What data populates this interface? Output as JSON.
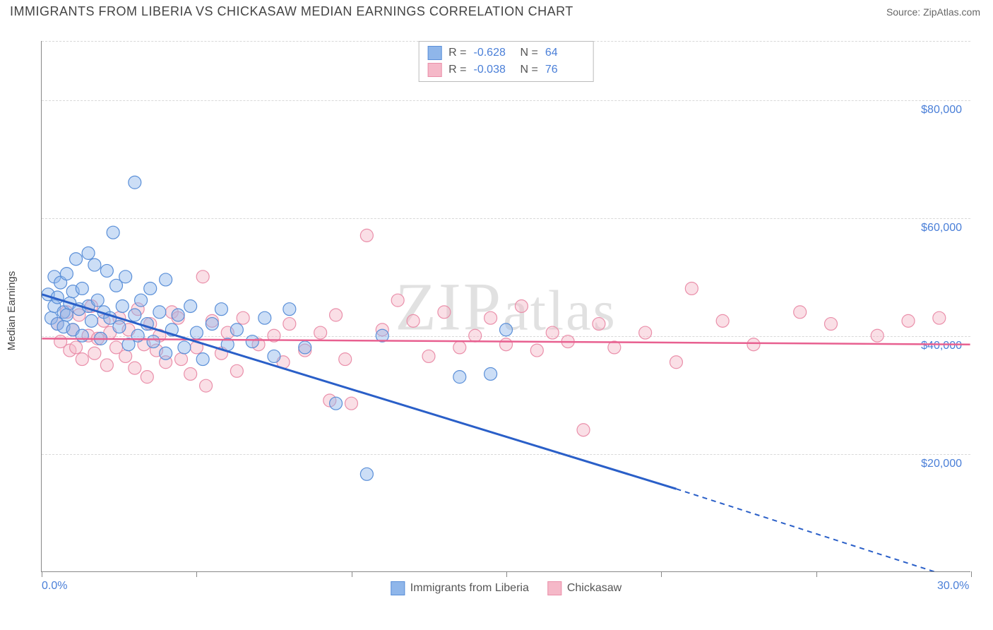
{
  "title": "IMMIGRANTS FROM LIBERIA VS CHICKASAW MEDIAN EARNINGS CORRELATION CHART",
  "source": "Source: ZipAtlas.com",
  "watermark": "ZIPatlas",
  "y_axis_label": "Median Earnings",
  "chart": {
    "type": "scatter",
    "xlim": [
      0,
      30
    ],
    "ylim": [
      0,
      90000
    ],
    "x_ticks": [
      0,
      5,
      10,
      15,
      20,
      25,
      30
    ],
    "x_labels_shown": {
      "0": "0.0%",
      "30": "30.0%"
    },
    "y_gridlines": [
      20000,
      40000,
      60000,
      80000
    ],
    "y_labels": {
      "20000": "$20,000",
      "40000": "$40,000",
      "60000": "$60,000",
      "80000": "$80,000"
    },
    "background_color": "#ffffff",
    "grid_color": "#d8d8d8",
    "axis_color": "#888888",
    "label_color": "#4a7fd8",
    "marker_radius": 9,
    "marker_opacity": 0.45,
    "marker_stroke_width": 1.2,
    "series": [
      {
        "name": "Immigrants from Liberia",
        "fill_color": "#8fb6ea",
        "stroke_color": "#5a8fd8",
        "trend_color": "#2a5fc8",
        "R": -0.628,
        "N": 64,
        "trend": {
          "x1": 0,
          "y1": 47000,
          "x2": 20.5,
          "y2": 14000,
          "dash_x2": 30,
          "dash_y2": -2000
        },
        "points": [
          [
            0.2,
            47000
          ],
          [
            0.3,
            43000
          ],
          [
            0.4,
            45000
          ],
          [
            0.4,
            50000
          ],
          [
            0.5,
            46500
          ],
          [
            0.5,
            42000
          ],
          [
            0.6,
            49000
          ],
          [
            0.7,
            44000
          ],
          [
            0.7,
            41500
          ],
          [
            0.8,
            43500
          ],
          [
            0.8,
            50500
          ],
          [
            0.9,
            45500
          ],
          [
            1.0,
            47500
          ],
          [
            1.0,
            41000
          ],
          [
            1.1,
            53000
          ],
          [
            1.2,
            44500
          ],
          [
            1.3,
            40000
          ],
          [
            1.3,
            48000
          ],
          [
            1.5,
            54000
          ],
          [
            1.5,
            45000
          ],
          [
            1.6,
            42500
          ],
          [
            1.7,
            52000
          ],
          [
            1.8,
            46000
          ],
          [
            1.9,
            39500
          ],
          [
            2.0,
            44000
          ],
          [
            2.1,
            51000
          ],
          [
            2.2,
            43000
          ],
          [
            2.3,
            57500
          ],
          [
            2.4,
            48500
          ],
          [
            2.5,
            41500
          ],
          [
            2.6,
            45000
          ],
          [
            2.7,
            50000
          ],
          [
            2.8,
            38500
          ],
          [
            3.0,
            66000
          ],
          [
            3.0,
            43500
          ],
          [
            3.1,
            40000
          ],
          [
            3.2,
            46000
          ],
          [
            3.4,
            42000
          ],
          [
            3.5,
            48000
          ],
          [
            3.6,
            39000
          ],
          [
            3.8,
            44000
          ],
          [
            4.0,
            37000
          ],
          [
            4.0,
            49500
          ],
          [
            4.2,
            41000
          ],
          [
            4.4,
            43500
          ],
          [
            4.6,
            38000
          ],
          [
            4.8,
            45000
          ],
          [
            5.0,
            40500
          ],
          [
            5.2,
            36000
          ],
          [
            5.5,
            42000
          ],
          [
            5.8,
            44500
          ],
          [
            6.0,
            38500
          ],
          [
            6.3,
            41000
          ],
          [
            6.8,
            39000
          ],
          [
            7.2,
            43000
          ],
          [
            7.5,
            36500
          ],
          [
            8.0,
            44500
          ],
          [
            8.5,
            38000
          ],
          [
            9.5,
            28500
          ],
          [
            10.5,
            16500
          ],
          [
            11.0,
            40000
          ],
          [
            13.5,
            33000
          ],
          [
            14.5,
            33500
          ],
          [
            15.0,
            41000
          ]
        ]
      },
      {
        "name": "Chickasaw",
        "fill_color": "#f5b8c8",
        "stroke_color": "#ea8faa",
        "trend_color": "#e86090",
        "R": -0.038,
        "N": 76,
        "trend": {
          "x1": 0,
          "y1": 39500,
          "x2": 30,
          "y2": 38500
        },
        "points": [
          [
            0.5,
            42000
          ],
          [
            0.6,
            39000
          ],
          [
            0.8,
            44000
          ],
          [
            0.9,
            37500
          ],
          [
            1.0,
            41000
          ],
          [
            1.1,
            38000
          ],
          [
            1.2,
            43500
          ],
          [
            1.3,
            36000
          ],
          [
            1.5,
            40000
          ],
          [
            1.6,
            45000
          ],
          [
            1.7,
            37000
          ],
          [
            1.8,
            39500
          ],
          [
            2.0,
            42500
          ],
          [
            2.1,
            35000
          ],
          [
            2.2,
            40500
          ],
          [
            2.4,
            38000
          ],
          [
            2.5,
            43000
          ],
          [
            2.7,
            36500
          ],
          [
            2.8,
            41000
          ],
          [
            3.0,
            34500
          ],
          [
            3.1,
            44500
          ],
          [
            3.3,
            38500
          ],
          [
            3.4,
            33000
          ],
          [
            3.5,
            42000
          ],
          [
            3.7,
            37500
          ],
          [
            3.8,
            40000
          ],
          [
            4.0,
            35500
          ],
          [
            4.2,
            44000
          ],
          [
            4.4,
            43000
          ],
          [
            4.5,
            36000
          ],
          [
            4.8,
            33500
          ],
          [
            5.0,
            38000
          ],
          [
            5.2,
            50000
          ],
          [
            5.3,
            31500
          ],
          [
            5.5,
            42500
          ],
          [
            5.8,
            37000
          ],
          [
            6.0,
            40500
          ],
          [
            6.3,
            34000
          ],
          [
            6.5,
            43000
          ],
          [
            7.0,
            38500
          ],
          [
            7.5,
            40000
          ],
          [
            7.8,
            35500
          ],
          [
            8.0,
            42000
          ],
          [
            8.5,
            37500
          ],
          [
            9.0,
            40500
          ],
          [
            9.3,
            29000
          ],
          [
            9.5,
            43500
          ],
          [
            9.8,
            36000
          ],
          [
            10.0,
            28500
          ],
          [
            10.5,
            57000
          ],
          [
            11.0,
            41000
          ],
          [
            11.5,
            46000
          ],
          [
            12.0,
            42500
          ],
          [
            12.5,
            36500
          ],
          [
            13.0,
            44000
          ],
          [
            13.5,
            38000
          ],
          [
            14.0,
            40000
          ],
          [
            14.5,
            43000
          ],
          [
            15.0,
            38500
          ],
          [
            15.5,
            45000
          ],
          [
            16.0,
            37500
          ],
          [
            16.5,
            40500
          ],
          [
            17.0,
            39000
          ],
          [
            17.5,
            24000
          ],
          [
            18.0,
            42000
          ],
          [
            18.5,
            38000
          ],
          [
            19.5,
            40500
          ],
          [
            20.5,
            35500
          ],
          [
            21.0,
            48000
          ],
          [
            22.0,
            42500
          ],
          [
            23.0,
            38500
          ],
          [
            24.5,
            44000
          ],
          [
            25.5,
            42000
          ],
          [
            27.0,
            40000
          ],
          [
            28.0,
            42500
          ],
          [
            29.0,
            43000
          ]
        ]
      }
    ]
  }
}
